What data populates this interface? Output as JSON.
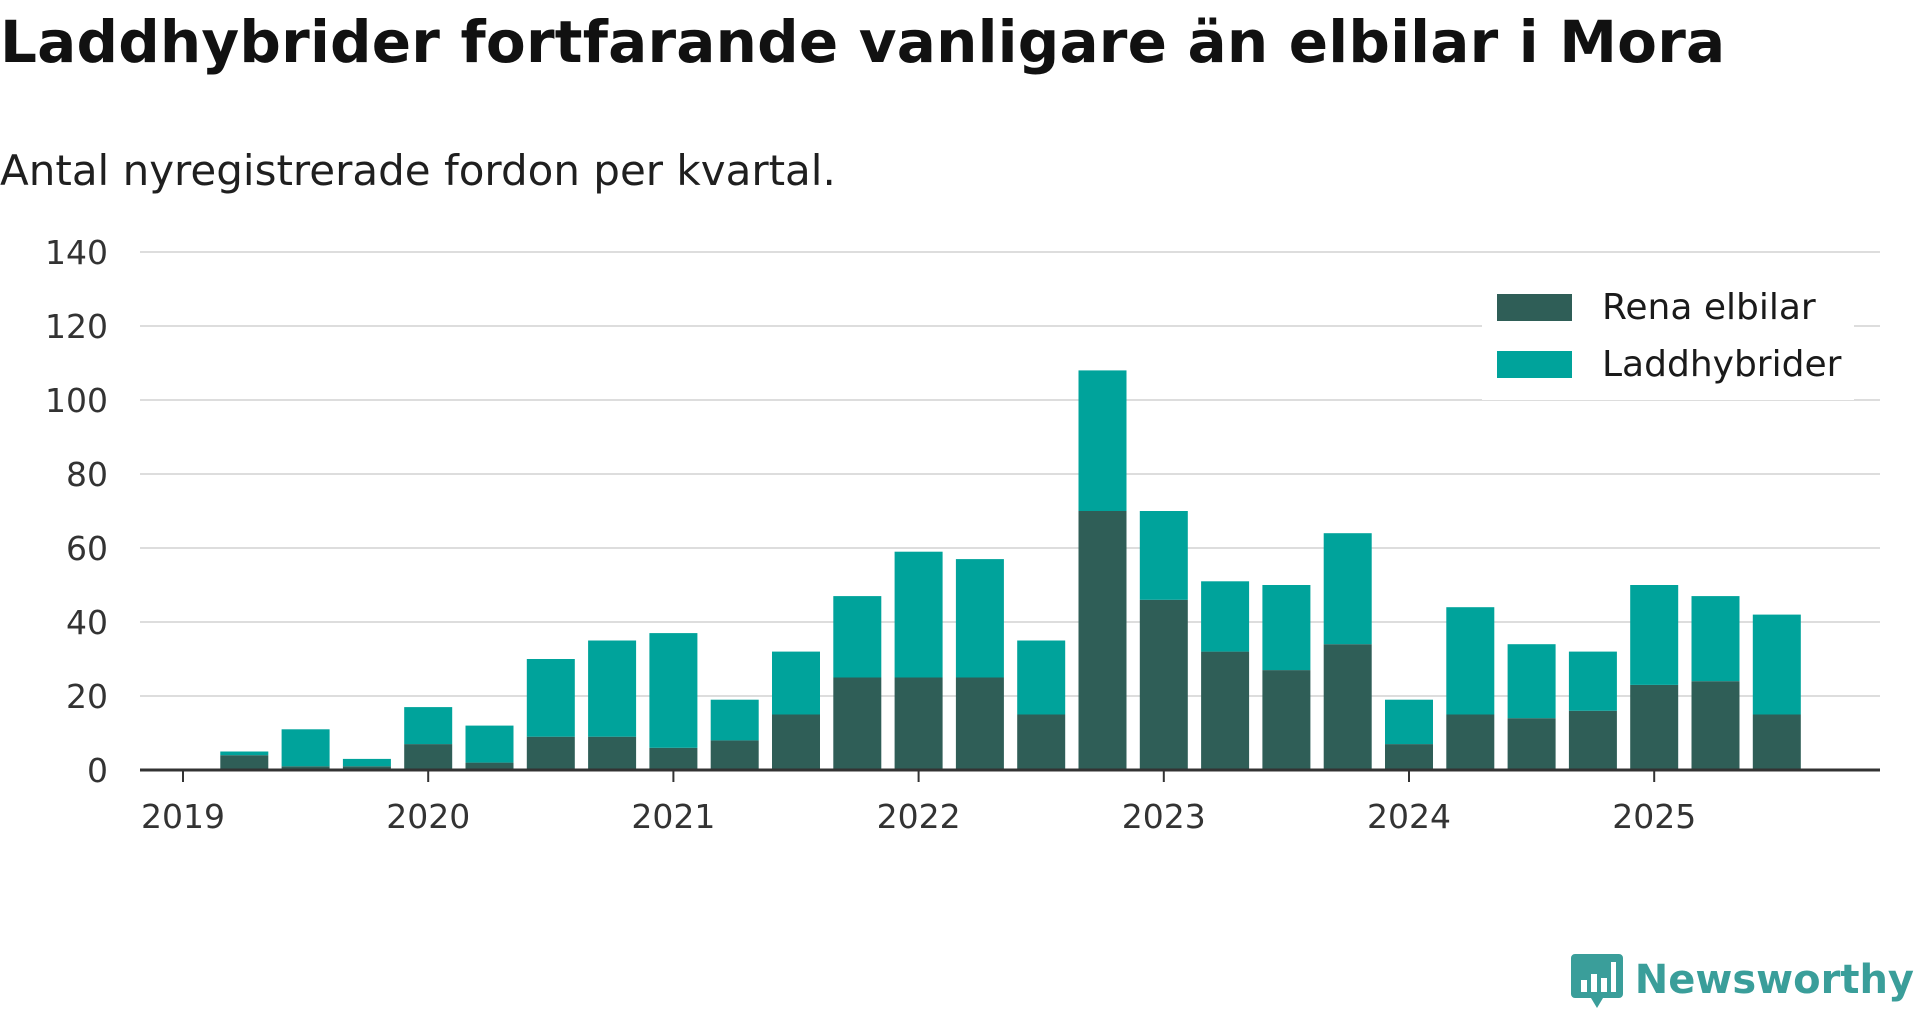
{
  "title": "Laddhybrider fortfarande vanligare än elbilar i Mora",
  "subtitle": "Antal nyregistrerade fordon per kvartal.",
  "brand": "Newsworthy",
  "colors": {
    "rena_elbilar": "#2f5e57",
    "laddhybrider": "#00a39b",
    "grid": "#dddddd",
    "axis": "#333333",
    "brand": "#3a9e9a"
  },
  "chart_data": {
    "type": "bar",
    "stacked": true,
    "x_ticks": [
      "2019",
      "2020",
      "2021",
      "2022",
      "2023",
      "2024",
      "2025"
    ],
    "y_ticks": [
      0,
      20,
      40,
      60,
      80,
      100,
      120,
      140
    ],
    "ylim": [
      0,
      140
    ],
    "legend_position": "top-right",
    "categories": [
      "2019 Q1",
      "2019 Q2",
      "2019 Q3",
      "2019 Q4",
      "2020 Q1",
      "2020 Q2",
      "2020 Q3",
      "2020 Q4",
      "2021 Q1",
      "2021 Q2",
      "2021 Q3",
      "2021 Q4",
      "2022 Q1",
      "2022 Q2",
      "2022 Q3",
      "2022 Q4",
      "2023 Q1",
      "2023 Q2",
      "2023 Q3",
      "2023 Q4",
      "2024 Q1",
      "2024 Q2",
      "2024 Q3",
      "2024 Q4",
      "2025 Q1",
      "2025 Q2",
      "2025 Q3"
    ],
    "series": [
      {
        "name": "Rena elbilar",
        "values": [
          0,
          4,
          1,
          1,
          7,
          2,
          9,
          9,
          6,
          8,
          15,
          25,
          25,
          25,
          15,
          70,
          46,
          32,
          27,
          34,
          7,
          15,
          14,
          16,
          23,
          24,
          15
        ]
      },
      {
        "name": "Laddhybrider",
        "values": [
          0,
          1,
          10,
          2,
          10,
          10,
          21,
          26,
          31,
          11,
          17,
          22,
          34,
          32,
          20,
          38,
          24,
          19,
          23,
          30,
          12,
          29,
          20,
          16,
          27,
          23,
          27
        ]
      }
    ]
  }
}
